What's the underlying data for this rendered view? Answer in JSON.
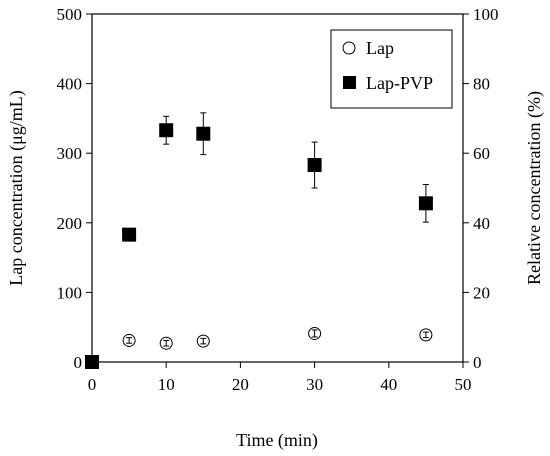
{
  "chart_data": {
    "type": "scatter",
    "title": "",
    "xlabel": "Time (min)",
    "ylabel": "Lap concentration (μg/mL)",
    "y2label": "Relative concentration (%)",
    "xlim": [
      0,
      50
    ],
    "ylim": [
      0,
      500
    ],
    "y2lim": [
      0,
      100
    ],
    "xticks": [
      "0",
      "10",
      "20",
      "30",
      "40",
      "50"
    ],
    "yticks": [
      "0",
      "100",
      "200",
      "300",
      "400",
      "500"
    ],
    "y2ticks": [
      "0",
      "20",
      "40",
      "60",
      "80",
      "100"
    ],
    "grid": false,
    "legend_position": "top-right",
    "series": [
      {
        "name": "Lap",
        "marker": "open-circle",
        "color": "#000000",
        "x": [
          5,
          10,
          15,
          30,
          45
        ],
        "y": [
          31,
          27,
          30,
          41,
          39
        ],
        "err": [
          4,
          4,
          4,
          5,
          4
        ]
      },
      {
        "name": "Lap-PVP",
        "marker": "filled-square",
        "color": "#000000",
        "x": [
          0,
          5,
          10,
          15,
          30,
          45
        ],
        "y": [
          0,
          183,
          333,
          328,
          283,
          228
        ],
        "err": [
          0,
          0,
          20,
          30,
          33,
          27
        ]
      }
    ]
  }
}
